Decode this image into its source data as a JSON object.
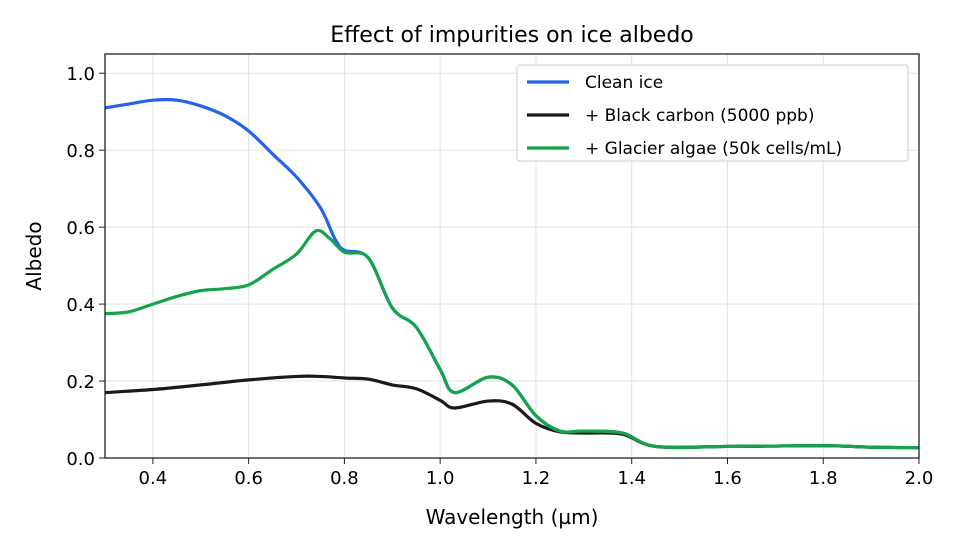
{
  "chart_data": {
    "type": "line",
    "title": "Effect of impurities on ice albedo",
    "xlabel": "Wavelength (µm)",
    "ylabel": "Albedo",
    "xlim": [
      0.3,
      2.0
    ],
    "ylim": [
      0.0,
      1.05
    ],
    "xticks": [
      "0.4",
      "0.6",
      "0.8",
      "1.0",
      "1.2",
      "1.4",
      "1.6",
      "1.8",
      "2.0"
    ],
    "yticks": [
      "0.0",
      "0.2",
      "0.4",
      "0.6",
      "0.8",
      "1.0"
    ],
    "grid": true,
    "legend_position": "top-right",
    "series": [
      {
        "name": "Clean ice",
        "color": "#2563eb",
        "x": [
          0.3,
          0.35,
          0.4,
          0.45,
          0.5,
          0.55,
          0.6,
          0.65,
          0.7,
          0.75,
          0.78,
          0.8,
          0.85,
          0.9,
          0.95,
          1.0,
          1.03,
          1.1,
          1.15,
          1.2,
          1.25,
          1.3,
          1.38,
          1.45,
          1.6,
          1.8,
          1.9,
          2.0
        ],
        "y": [
          0.91,
          0.92,
          0.93,
          0.93,
          0.915,
          0.89,
          0.85,
          0.79,
          0.73,
          0.65,
          0.57,
          0.54,
          0.52,
          0.39,
          0.34,
          0.23,
          0.17,
          0.21,
          0.19,
          0.11,
          0.07,
          0.07,
          0.065,
          0.03,
          0.03,
          0.032,
          0.028,
          0.027
        ]
      },
      {
        "name": "+ Black carbon (5000 ppb)",
        "color": "#1a1a1a",
        "x": [
          0.3,
          0.4,
          0.5,
          0.6,
          0.7,
          0.75,
          0.8,
          0.85,
          0.9,
          0.95,
          1.0,
          1.03,
          1.1,
          1.15,
          1.2,
          1.25,
          1.3,
          1.38,
          1.45,
          1.6,
          1.8,
          1.9,
          2.0
        ],
        "y": [
          0.17,
          0.178,
          0.19,
          0.203,
          0.212,
          0.212,
          0.208,
          0.205,
          0.19,
          0.18,
          0.15,
          0.13,
          0.148,
          0.14,
          0.09,
          0.068,
          0.065,
          0.062,
          0.03,
          0.03,
          0.032,
          0.028,
          0.027
        ]
      },
      {
        "name": "+ Glacier algae (50k cells/mL)",
        "color": "#16a34a",
        "x": [
          0.3,
          0.35,
          0.4,
          0.45,
          0.5,
          0.55,
          0.6,
          0.65,
          0.7,
          0.74,
          0.77,
          0.8,
          0.85,
          0.9,
          0.95,
          1.0,
          1.03,
          1.1,
          1.15,
          1.2,
          1.25,
          1.3,
          1.38,
          1.45,
          1.6,
          1.8,
          1.9,
          2.0
        ],
        "y": [
          0.375,
          0.38,
          0.4,
          0.42,
          0.435,
          0.44,
          0.45,
          0.49,
          0.53,
          0.59,
          0.57,
          0.535,
          0.52,
          0.39,
          0.34,
          0.23,
          0.17,
          0.21,
          0.19,
          0.11,
          0.07,
          0.07,
          0.065,
          0.03,
          0.03,
          0.032,
          0.028,
          0.027
        ]
      }
    ]
  }
}
